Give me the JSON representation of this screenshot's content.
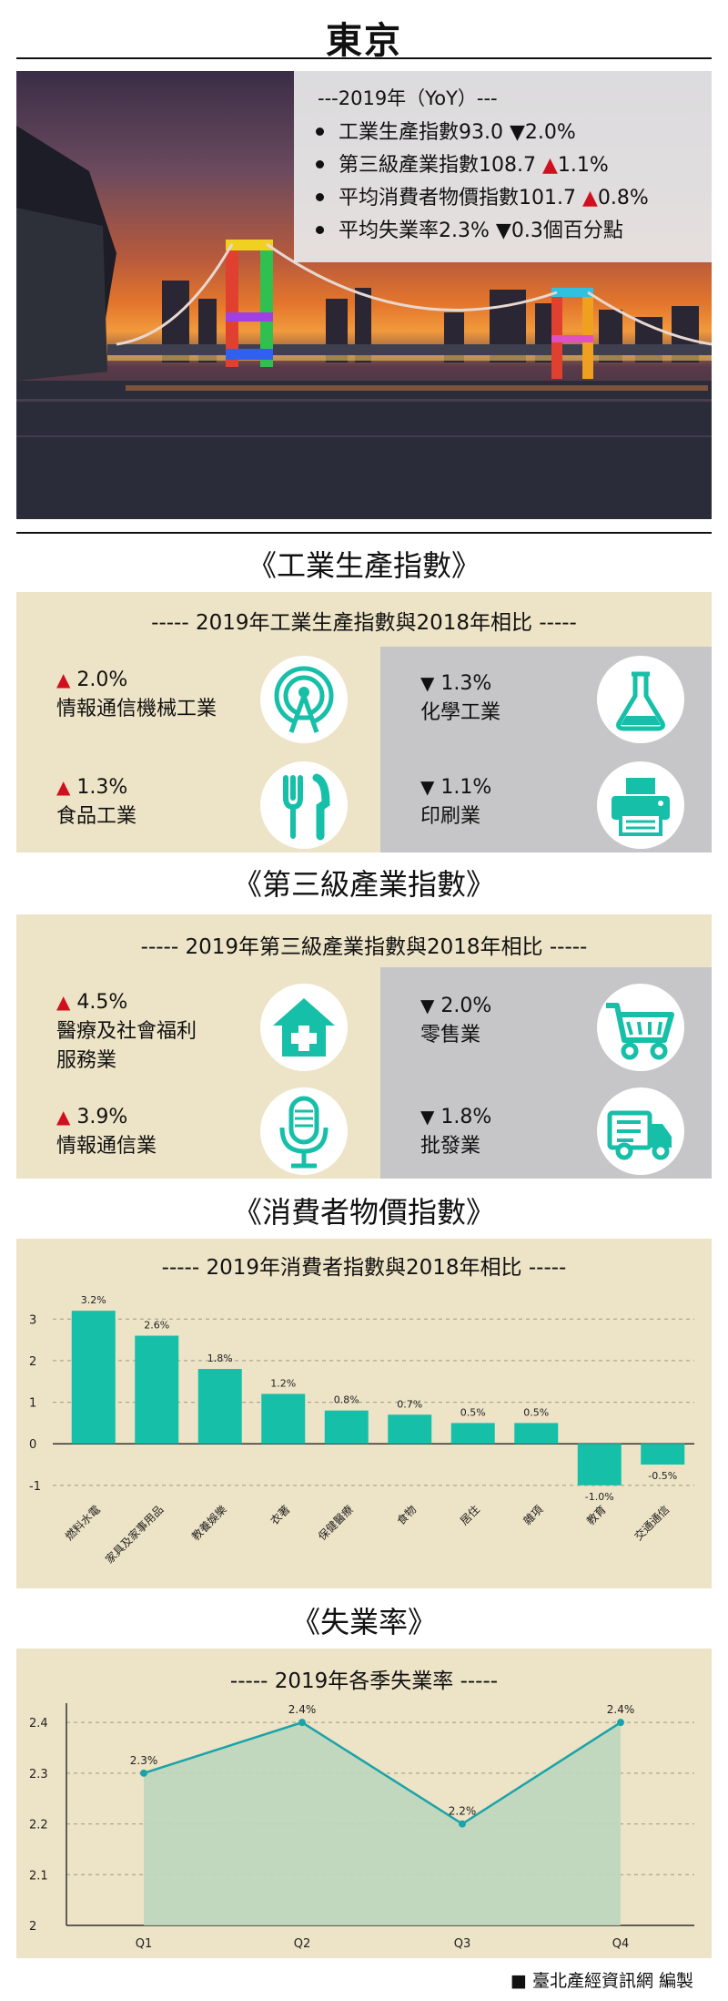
{
  "page": {
    "title": "東京",
    "footer": "■ 臺北產經資訊網 編製"
  },
  "yoy": {
    "heading": "---2019年（YoY）---",
    "items": [
      {
        "label": "工業生產指數93.0",
        "dir": "▼",
        "change": "2.0%"
      },
      {
        "label": "第三級產業指數108.7",
        "dir": "▲",
        "change": "1.1%"
      },
      {
        "label": "平均消費者物價指數101.7",
        "dir": "▲",
        "change": "0.8%"
      },
      {
        "label": "平均失業率2.3%",
        "dir": "▼",
        "change": "0.3個百分點"
      }
    ]
  },
  "industrial": {
    "title": "《工業生產指數》",
    "subtitle": "----- 2019年工業生產指數與2018年相比 -----",
    "items": [
      {
        "dir": "▲",
        "change": "2.0%",
        "name": "情報通信機械工業",
        "icon": "antenna-icon"
      },
      {
        "dir": "▼",
        "change": "1.3%",
        "name": "化學工業",
        "icon": "flask-icon"
      },
      {
        "dir": "▲",
        "change": "1.3%",
        "name": "食品工業",
        "icon": "fork-knife-icon"
      },
      {
        "dir": "▼",
        "change": "1.1%",
        "name": "印刷業",
        "icon": "printer-icon"
      }
    ]
  },
  "tertiary": {
    "title": "《第三級產業指數》",
    "subtitle": "----- 2019年第三級產業指數與2018年相比 -----",
    "items": [
      {
        "dir": "▲",
        "change": "4.5%",
        "name1": "醫療及社會福利",
        "name2": "服務業",
        "icon": "medical-house-icon"
      },
      {
        "dir": "▼",
        "change": "2.0%",
        "name1": "零售業",
        "name2": "",
        "icon": "shopping-cart-icon"
      },
      {
        "dir": "▲",
        "change": "3.9%",
        "name1": "情報通信業",
        "name2": "",
        "icon": "microphone-icon"
      },
      {
        "dir": "▼",
        "change": "1.8%",
        "name1": "批發業",
        "name2": "",
        "icon": "truck-icon"
      }
    ]
  },
  "cpi": {
    "title": "《消費者物價指數》",
    "subtitle": "----- 2019年消費者指數與2018年相比 -----"
  },
  "unemployment": {
    "title": "《失業率》",
    "subtitle": "----- 2019年各季失業率 -----"
  },
  "colors": {
    "teal": "#16bfa8",
    "red": "#d0101e",
    "panel": "#ede3c6",
    "gray": "#c6c6c8",
    "line": "#1aa3a8",
    "area": "#bcd6bd"
  },
  "chart_data": [
    {
      "type": "bar",
      "categories": [
        "燃料水電",
        "家具及家事用品",
        "教養娛樂",
        "衣著",
        "保健醫療",
        "食物",
        "居住",
        "雜項",
        "教育",
        "交通通信"
      ],
      "values": [
        3.2,
        2.6,
        1.8,
        1.2,
        0.8,
        0.7,
        0.5,
        0.5,
        -1.0,
        -0.5
      ],
      "data_labels": [
        "3.2%",
        "2.6%",
        "1.8%",
        "1.2%",
        "0.8%",
        "0.7%",
        "0.5%",
        "0.5%",
        "-1.0%",
        "-0.5%"
      ],
      "yticks": [
        "3",
        "2",
        "1",
        "0",
        "-1"
      ],
      "ylim": [
        -1.2,
        3.4
      ],
      "grid": true
    },
    {
      "type": "area",
      "categories": [
        "Q1",
        "Q2",
        "Q3",
        "Q4"
      ],
      "values": [
        2.3,
        2.4,
        2.2,
        2.4
      ],
      "data_labels": [
        "2.3%",
        "2.4%",
        "2.2%",
        "2.4%"
      ],
      "yticks": [
        "2.4",
        "2.3",
        "2.2",
        "2.1",
        "2"
      ],
      "ylim": [
        2.0,
        2.42
      ],
      "grid": true
    }
  ]
}
